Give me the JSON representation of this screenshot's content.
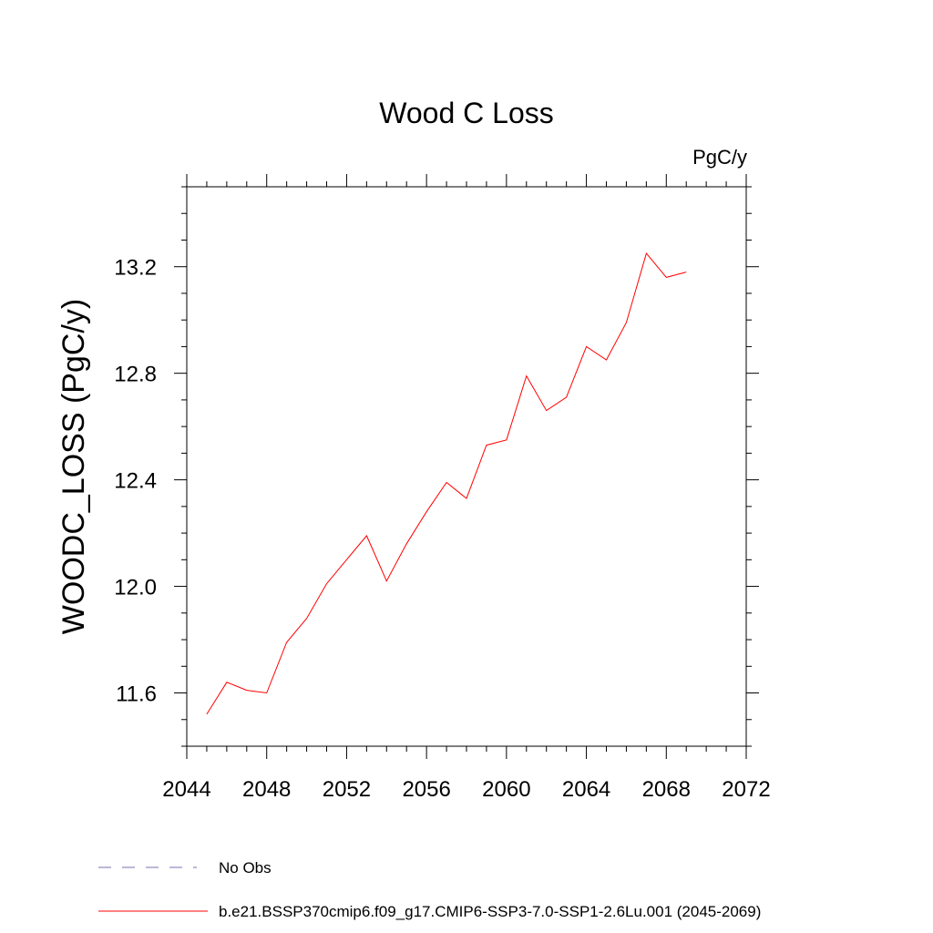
{
  "chart_data": {
    "type": "line",
    "title": "Wood C Loss",
    "units_label": "PgC/y",
    "xlabel": "",
    "ylabel": "WOODC_LOSS  (PgC/y)",
    "xlim": [
      2044,
      2072
    ],
    "ylim": [
      11.4,
      13.5
    ],
    "x_major_ticks": [
      2044,
      2048,
      2052,
      2056,
      2060,
      2064,
      2068,
      2072
    ],
    "x_minor_step": 1,
    "y_major_ticks": [
      11.6,
      12.0,
      12.4,
      12.8,
      13.2
    ],
    "y_tick_labels": [
      "11.6",
      "12.0",
      "12.4",
      "12.8",
      "13.2"
    ],
    "y_minor_step": 0.1,
    "grid": false,
    "legend_position": "bottom",
    "series": [
      {
        "name": "b.e21.BSSP370cmip6.f09_g17.CMIP6-SSP3-7.0-SSP1-2.6Lu.001 (2045-2069)",
        "color": "#ff0000",
        "style": "solid",
        "x": [
          2045,
          2046,
          2047,
          2048,
          2049,
          2050,
          2051,
          2052,
          2053,
          2054,
          2055,
          2056,
          2057,
          2058,
          2059,
          2060,
          2061,
          2062,
          2063,
          2064,
          2065,
          2066,
          2067,
          2068,
          2069
        ],
        "y": [
          11.52,
          11.64,
          11.61,
          11.6,
          11.79,
          11.88,
          12.01,
          12.1,
          12.19,
          12.02,
          12.16,
          12.28,
          12.39,
          12.33,
          12.53,
          12.55,
          12.79,
          12.66,
          12.71,
          12.9,
          12.85,
          12.99,
          13.25,
          13.16,
          13.18
        ]
      }
    ],
    "legend": [
      {
        "label": "No Obs",
        "color": "#7b6fb0",
        "style": "dashed"
      },
      {
        "label": "b.e21.BSSP370cmip6.f09_g17.CMIP6-SSP3-7.0-SSP1-2.6Lu.001 (2045-2069)",
        "color": "#ff0000",
        "style": "solid"
      }
    ]
  }
}
